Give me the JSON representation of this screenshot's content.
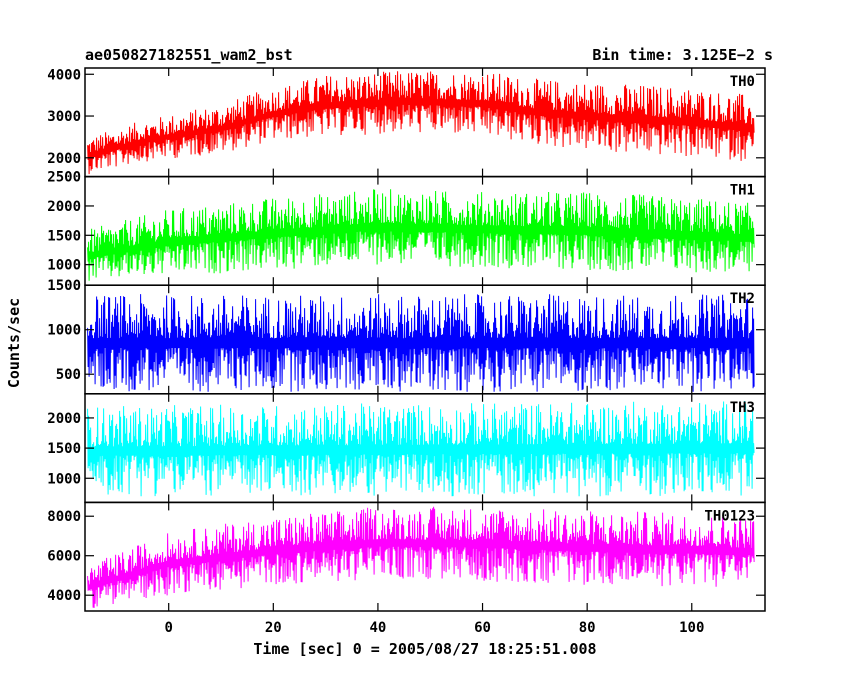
{
  "header": {
    "title": "ae050827182551_wam2_bst",
    "bin_time": "Bin time: 3.125E−2 s"
  },
  "chart_data": {
    "type": "line",
    "xlabel": "Time [sec] 0 = 2005/08/27 18:25:51.008",
    "ylabel": "Counts/sec",
    "xlim": [
      -16,
      114
    ],
    "x_ticks": [
      0,
      20,
      40,
      60,
      80,
      100
    ],
    "x_tick_labels": [
      "0",
      "20",
      "40",
      "60",
      "80",
      "100"
    ],
    "x_range": [
      -15.5,
      112
    ],
    "grid": false,
    "panels": [
      {
        "name": "TH0",
        "color": "#ff0000",
        "ylim": [
          1550,
          4150
        ],
        "y_ticks": [
          2000,
          3000,
          4000
        ],
        "y_tick_labels": [
          "2000",
          "3000",
          "4000"
        ],
        "envelope": [
          {
            "x": -15.5,
            "lo": 1600,
            "hi": 2500
          },
          {
            "x": -5,
            "lo": 1900,
            "hi": 2900
          },
          {
            "x": 10,
            "lo": 2100,
            "hi": 3300
          },
          {
            "x": 20,
            "lo": 2400,
            "hi": 3700
          },
          {
            "x": 30,
            "lo": 2500,
            "hi": 4000
          },
          {
            "x": 45,
            "lo": 2600,
            "hi": 4100
          },
          {
            "x": 60,
            "lo": 2500,
            "hi": 4100
          },
          {
            "x": 70,
            "lo": 2300,
            "hi": 3900
          },
          {
            "x": 85,
            "lo": 2100,
            "hi": 3800
          },
          {
            "x": 100,
            "lo": 2000,
            "hi": 3700
          },
          {
            "x": 112,
            "lo": 1900,
            "hi": 3500
          }
        ]
      },
      {
        "name": "TH1",
        "color": "#00ff00",
        "ylim": [
          650,
          2500
        ],
        "y_ticks": [
          1000,
          1500,
          2000,
          2500
        ],
        "y_tick_labels": [
          "1000",
          "1500",
          "2000",
          "2500"
        ],
        "envelope": [
          {
            "x": -15.5,
            "lo": 700,
            "hi": 1600
          },
          {
            "x": 0,
            "lo": 800,
            "hi": 1950
          },
          {
            "x": 20,
            "lo": 900,
            "hi": 2150
          },
          {
            "x": 40,
            "lo": 1000,
            "hi": 2300
          },
          {
            "x": 60,
            "lo": 950,
            "hi": 2250
          },
          {
            "x": 80,
            "lo": 900,
            "hi": 2250
          },
          {
            "x": 100,
            "lo": 850,
            "hi": 2150
          },
          {
            "x": 112,
            "lo": 850,
            "hi": 2050
          }
        ]
      },
      {
        "name": "TH2",
        "color": "#0000ff",
        "ylim": [
          280,
          1500
        ],
        "y_ticks": [
          500,
          1000,
          1500
        ],
        "y_tick_labels": [
          "500",
          "1000",
          "1500"
        ],
        "envelope": [
          {
            "x": -15.5,
            "lo": 300,
            "hi": 1400
          },
          {
            "x": 112,
            "lo": 300,
            "hi": 1400
          }
        ]
      },
      {
        "name": "TH3",
        "color": "#00ffff",
        "ylim": [
          600,
          2400
        ],
        "y_ticks": [
          1000,
          1500,
          2000
        ],
        "y_tick_labels": [
          "1000",
          "1500",
          "2000"
        ],
        "envelope": [
          {
            "x": -15.5,
            "lo": 700,
            "hi": 2200
          },
          {
            "x": 112,
            "lo": 700,
            "hi": 2300
          }
        ]
      },
      {
        "name": "TH0123",
        "color": "#ff00ff",
        "ylim": [
          3200,
          8700
        ],
        "y_ticks": [
          4000,
          6000,
          8000
        ],
        "y_tick_labels": [
          "4000",
          "6000",
          "8000"
        ],
        "envelope": [
          {
            "x": -15.5,
            "lo": 3300,
            "hi": 5500
          },
          {
            "x": 0,
            "lo": 4000,
            "hi": 7200
          },
          {
            "x": 20,
            "lo": 4500,
            "hi": 8000
          },
          {
            "x": 40,
            "lo": 4800,
            "hi": 8500
          },
          {
            "x": 60,
            "lo": 4700,
            "hi": 8500
          },
          {
            "x": 80,
            "lo": 4500,
            "hi": 8300
          },
          {
            "x": 100,
            "lo": 4400,
            "hi": 8200
          },
          {
            "x": 112,
            "lo": 4400,
            "hi": 8000
          }
        ]
      }
    ]
  }
}
